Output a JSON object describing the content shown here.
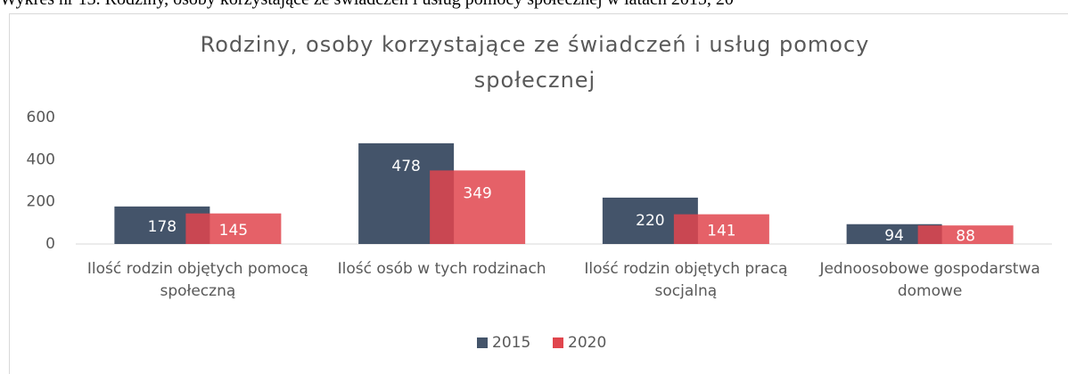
{
  "caption": "Wykres nr 13. Rodziny, osoby korzystające ze świadczeń i usług pomocy społecznej w latach 2015, 20",
  "chart_data": {
    "type": "bar",
    "title": "Rodziny, osoby korzystające ze świadczeń i usług pomocy społecznej",
    "categories": [
      "Ilość rodzin objętych pomocą społeczną",
      "Ilość osób w tych rodzinach",
      "Ilość rodzin objętych pracą socjalną",
      "Jednoosobowe gospodarstwa domowe"
    ],
    "series": [
      {
        "name": "2015",
        "color": "#44546a",
        "values": [
          178,
          478,
          220,
          94
        ]
      },
      {
        "name": "2020",
        "color": "#e0454d",
        "values": [
          145,
          349,
          141,
          88
        ]
      }
    ],
    "ylim": [
      0,
      600
    ],
    "yticks": [
      0,
      200,
      400,
      600
    ],
    "grid": false,
    "legend": "bottom"
  }
}
